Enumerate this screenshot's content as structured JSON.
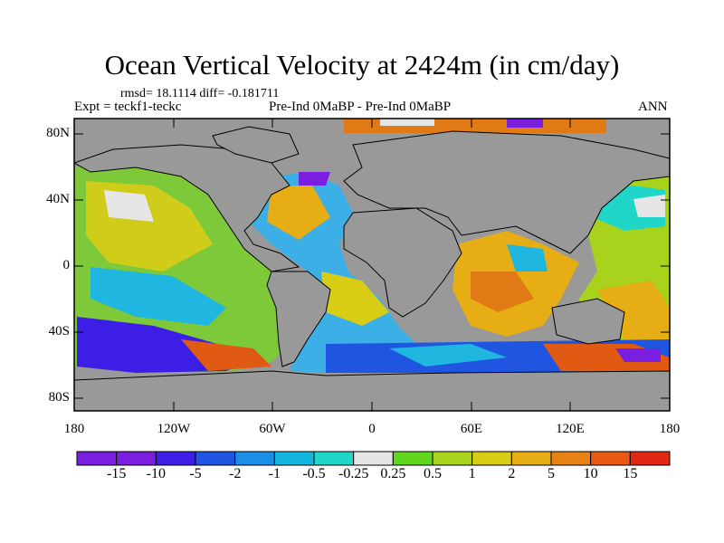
{
  "title": "Ocean Vertical Velocity at 2424m (in cm/day)",
  "stats": "rmsd= 18.1114 diff= -0.181711",
  "experiment": "Expt = teckf1-teckc",
  "comparison": "Pre-Ind 0MaBP - Pre-Ind 0MaBP",
  "season": "ANN",
  "lat_labels": [
    "80N",
    "40N",
    "0",
    "40S",
    "80S"
  ],
  "lon_labels": [
    "180",
    "120W",
    "60W",
    "0",
    "60E",
    "120E",
    "180"
  ],
  "colorbar": {
    "labels": [
      "-15",
      "-10",
      "-5",
      "-2",
      "-1",
      "-0.5",
      "-0.25",
      "0.25",
      "0.5",
      "1",
      "2",
      "5",
      "10",
      "15"
    ],
    "colors": [
      "#7a1fe0",
      "#3c1ee6",
      "#1f55e0",
      "#1b8ee8",
      "#14b6e0",
      "#1fd6c8",
      "#e6e6e6",
      "#62d61e",
      "#a8d21b",
      "#d8cc14",
      "#e6ad14",
      "#e88214",
      "#e85a14",
      "#e02814"
    ]
  },
  "land_color": "#999999"
}
